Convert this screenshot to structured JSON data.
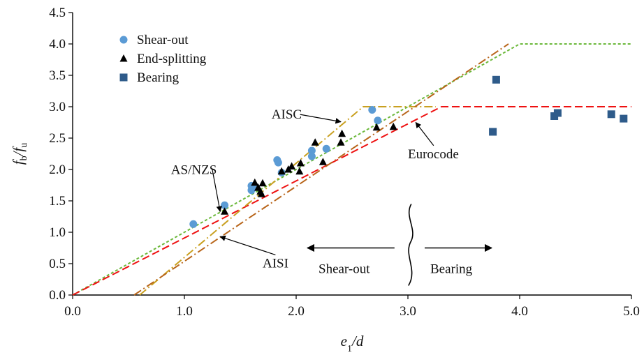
{
  "chart_data": {
    "type": "scatter",
    "title": "",
    "xlabel": "e1/d",
    "ylabel": "fb/fu",
    "xlim": [
      0,
      5
    ],
    "ylim": [
      0,
      4.5
    ],
    "x_ticks": [
      "0.0",
      "1.0",
      "2.0",
      "3.0",
      "4.0",
      "5.0"
    ],
    "y_ticks": [
      "0.0",
      "0.5",
      "1.0",
      "1.5",
      "2.0",
      "2.5",
      "3.0",
      "3.5",
      "4.0",
      "4.5"
    ],
    "grid": false,
    "legend_position": "top-left",
    "series": [
      {
        "name": "Shear-out",
        "marker": "circle",
        "color": "#5b9bd5",
        "points": [
          [
            1.08,
            1.13
          ],
          [
            1.36,
            1.43
          ],
          [
            1.6,
            1.74
          ],
          [
            1.6,
            1.67
          ],
          [
            1.64,
            1.72
          ],
          [
            1.83,
            2.15
          ],
          [
            1.84,
            2.11
          ],
          [
            1.87,
            1.95
          ],
          [
            2.14,
            2.3
          ],
          [
            2.14,
            2.21
          ],
          [
            2.27,
            2.33
          ],
          [
            2.68,
            2.95
          ],
          [
            2.73,
            2.78
          ]
        ]
      },
      {
        "name": "End-splitting",
        "marker": "triangle",
        "color": "#000000",
        "points": [
          [
            1.36,
            1.33
          ],
          [
            1.63,
            1.79
          ],
          [
            1.66,
            1.71
          ],
          [
            1.68,
            1.65
          ],
          [
            1.69,
            1.61
          ],
          [
            1.7,
            1.78
          ],
          [
            1.87,
            1.97
          ],
          [
            1.93,
            2.0
          ],
          [
            1.96,
            2.05
          ],
          [
            2.03,
            1.97
          ],
          [
            2.04,
            2.1
          ],
          [
            2.17,
            2.43
          ],
          [
            2.24,
            2.12
          ],
          [
            2.4,
            2.43
          ],
          [
            2.41,
            2.57
          ],
          [
            2.72,
            2.67
          ],
          [
            2.87,
            2.68
          ]
        ]
      },
      {
        "name": "Bearing",
        "marker": "square",
        "color": "#2e5b8a",
        "points": [
          [
            3.76,
            2.6
          ],
          [
            3.79,
            3.43
          ],
          [
            4.31,
            2.85
          ],
          [
            4.34,
            2.9
          ],
          [
            4.82,
            2.88
          ],
          [
            4.93,
            2.81
          ]
        ]
      }
    ],
    "design_curves": [
      {
        "name": "AS/NZS",
        "color": "#6bb83a",
        "dash": "4 3",
        "points": [
          [
            0,
            0
          ],
          [
            4.0,
            4.0
          ],
          [
            5.0,
            4.0
          ]
        ]
      },
      {
        "name": "Eurocode",
        "color": "#ee1111",
        "dash": "11 5",
        "points": [
          [
            0,
            0
          ],
          [
            3.3,
            3.0
          ],
          [
            5.0,
            3.0
          ]
        ]
      },
      {
        "name": "AISC",
        "color": "#c9a020",
        "dash": "12 4 2 4",
        "points": [
          [
            0.6,
            0
          ],
          [
            2.6,
            3.0
          ],
          [
            3.25,
            3.0
          ]
        ]
      },
      {
        "name": "AISI",
        "color": "#b8651a",
        "dash": "12 4 2 4",
        "points": [
          [
            0.55,
            0
          ],
          [
            3.9,
            4.0
          ]
        ]
      }
    ],
    "annotations": [
      {
        "text": "AISC",
        "label_at": [
          1.78,
          2.81
        ],
        "arrow_to": [
          2.4,
          2.76
        ]
      },
      {
        "text": "AS/NZS",
        "label_at": [
          0.88,
          1.93
        ],
        "arrow_to": [
          1.32,
          1.33
        ]
      },
      {
        "text": "Eurocode",
        "label_at": [
          3.0,
          2.18
        ],
        "arrow_to": [
          3.07,
          2.75
        ]
      },
      {
        "text": "AISI",
        "label_at": [
          1.7,
          0.44
        ],
        "arrow_to": [
          1.32,
          0.93
        ]
      },
      {
        "text": "Shear-out",
        "label_at": [
          2.2,
          0.35
        ]
      },
      {
        "text": "Bearing",
        "label_at": [
          3.2,
          0.35
        ]
      }
    ],
    "region_arrows": [
      {
        "from": [
          2.88,
          0.75
        ],
        "to": [
          2.1,
          0.75
        ]
      },
      {
        "from": [
          3.15,
          0.75
        ],
        "to": [
          3.75,
          0.75
        ]
      }
    ],
    "divider": {
      "x": 3.03,
      "y_range": [
        0.15,
        1.45
      ]
    }
  }
}
